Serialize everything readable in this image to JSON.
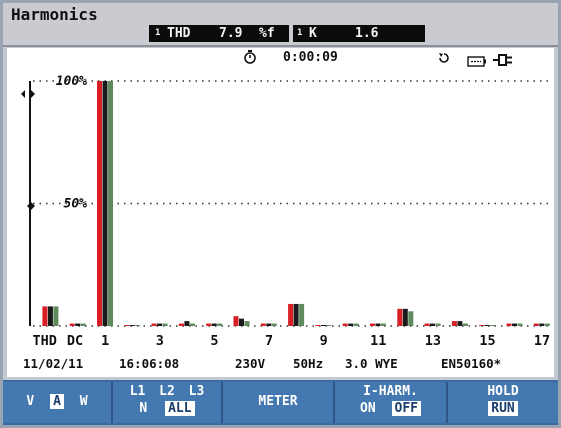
{
  "app": {
    "title": "Harmonics"
  },
  "readouts": [
    {
      "index": "1",
      "label": "THD",
      "value": "7.9",
      "unit": "%f"
    },
    {
      "index": "1",
      "label": "K",
      "value": "1.6"
    }
  ],
  "status": {
    "timer": "0:00:09"
  },
  "chart_data": {
    "type": "bar",
    "ylabels": [
      "100%",
      "50%"
    ],
    "categories": [
      "THD",
      "DC",
      "1",
      "2",
      "3",
      "4",
      "5",
      "6",
      "7",
      "8",
      "9",
      "10",
      "11",
      "12",
      "13",
      "14",
      "15",
      "16",
      "17"
    ],
    "xtick_labels": [
      "THD",
      "DC",
      "1",
      "3",
      "5",
      "7",
      "9",
      "11",
      "13",
      "15",
      "17"
    ],
    "series": [
      {
        "values": [
          8,
          1,
          100,
          0,
          1,
          1,
          1,
          4,
          1,
          9,
          0,
          1,
          1,
          7,
          1,
          2,
          0,
          1,
          1
        ]
      },
      {
        "values": [
          8,
          1,
          100,
          0,
          1,
          2,
          1,
          3,
          1,
          9,
          0,
          1,
          1,
          7,
          1,
          2,
          0,
          1,
          1
        ]
      },
      {
        "values": [
          8,
          1,
          100,
          0,
          1,
          1,
          1,
          2,
          1,
          9,
          0,
          1,
          1,
          6,
          1,
          1,
          0,
          1,
          1
        ]
      }
    ],
    "series_colors": [
      "#d81f26",
      "#1a1a1a",
      "#5e8a5e"
    ],
    "ylim": [
      0,
      100
    ]
  },
  "footer": {
    "date": "11/02/11",
    "time": "16:06:08",
    "voltage": "230V",
    "freq": "50Hz",
    "config": "3.0 WYE",
    "standard": "EN50160*"
  },
  "softkeys": {
    "vaw": {
      "v": "V",
      "a": "A",
      "w": "W"
    },
    "phase": {
      "l1": "L1",
      "l2": "L2",
      "l3": "L3",
      "n": "N",
      "all": "ALL"
    },
    "meter": "METER",
    "iharm": {
      "title": "I-HARM.",
      "on": "ON",
      "off": "OFF"
    },
    "hold": {
      "hold": "HOLD",
      "run": "RUN"
    }
  }
}
